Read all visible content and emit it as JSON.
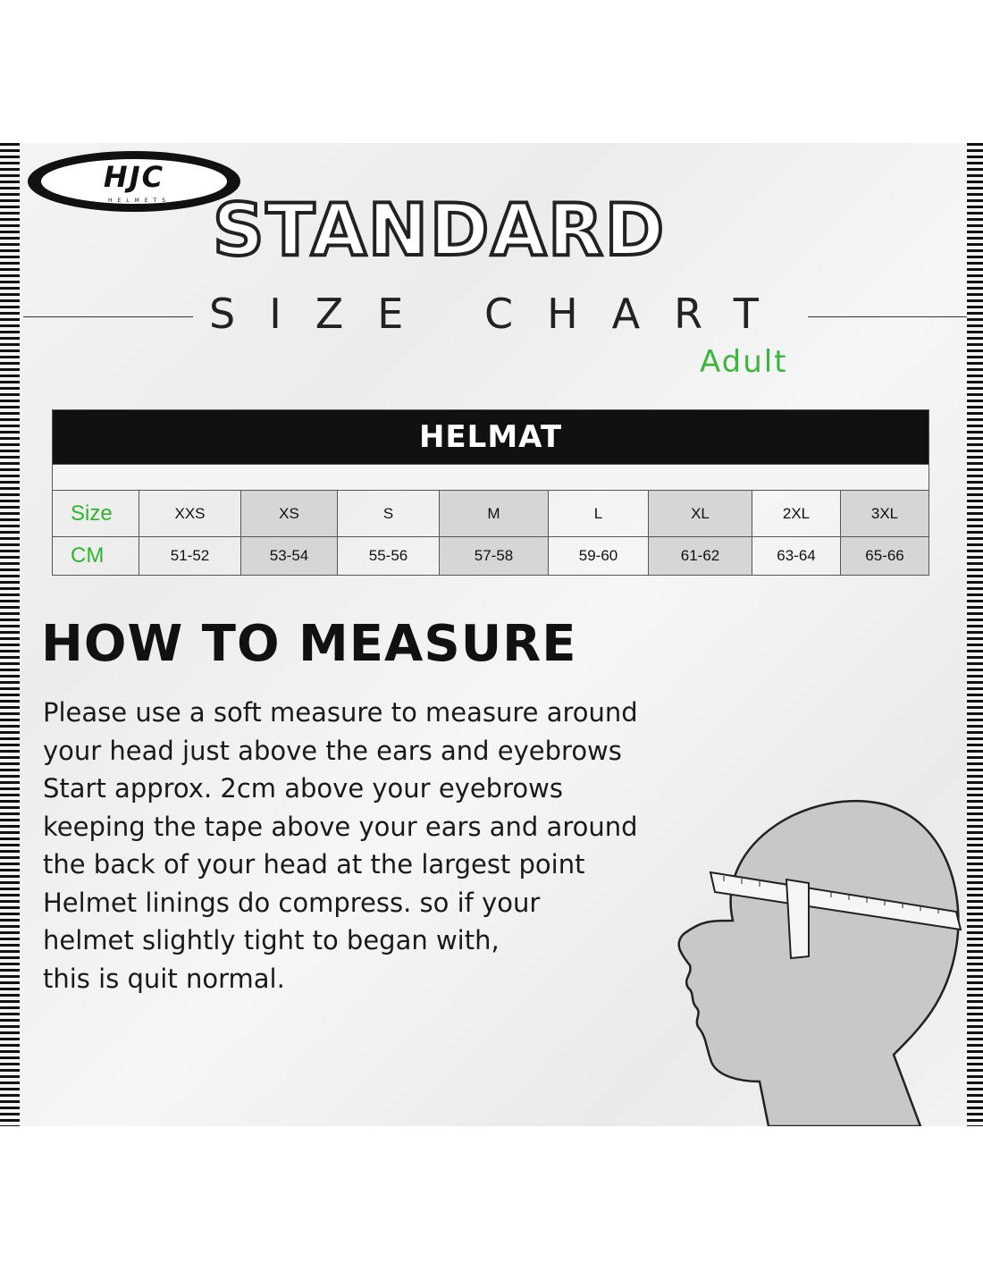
{
  "logo": {
    "brand": "HJC",
    "tagline": "HELMETS"
  },
  "title": "STANDARD",
  "subtitle": "SIZE CHART",
  "audience": "Adult",
  "table": {
    "header": "HELMAT",
    "row_labels": {
      "size": "Size",
      "cm": "CM"
    },
    "sizes": [
      "XXS",
      "XS",
      "S",
      "M",
      "L",
      "XL",
      "2XL",
      "3XL"
    ],
    "cm": [
      "51-52",
      "53-54",
      "55-56",
      "57-58",
      "59-60",
      "61-62",
      "63-64",
      "65-66"
    ]
  },
  "measure": {
    "heading": "HOW TO MEASURE",
    "lines": [
      "Please use a soft measure to measure around",
      "your head just above the ears and eyebrows",
      "Start approx. 2cm above your eyebrows",
      "keeping the tape above your ears and around",
      "the back of your head at the largest point",
      "Helmet linings do compress. so if your",
      "helmet slightly tight to began with,",
      "this is quit normal."
    ]
  },
  "colors": {
    "accent_green": "#3bb53b",
    "header_black": "#111111",
    "shaded_cell": "#d6d6d6"
  }
}
